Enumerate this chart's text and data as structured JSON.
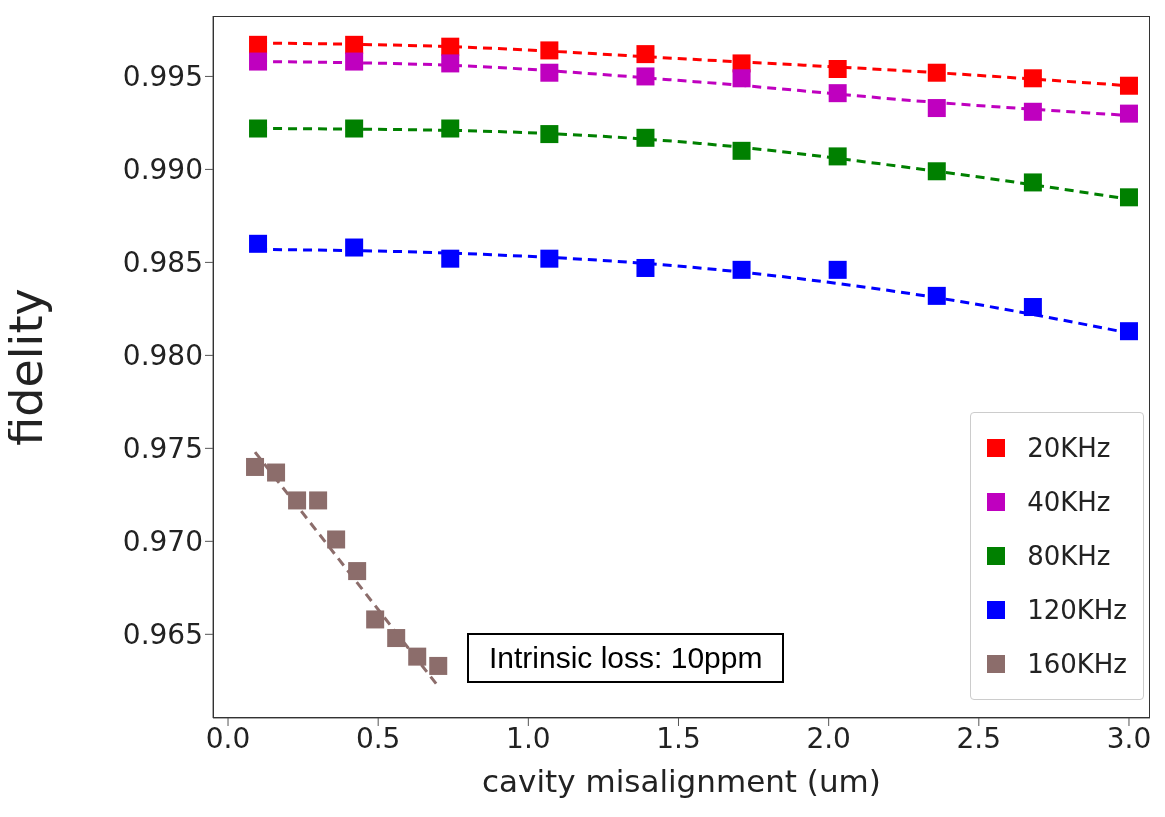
{
  "chart_data": {
    "type": "scatter",
    "xlabel": "cavity misalignment (um)",
    "ylabel": "fidelity",
    "xlim": [
      -0.05,
      3.07
    ],
    "ylim": [
      0.9605,
      0.99825
    ],
    "xticks": [
      {
        "value": 0,
        "label": "0.0"
      },
      {
        "value": 0.5,
        "label": "0.5"
      },
      {
        "value": 1,
        "label": "1.0"
      },
      {
        "value": 1.5,
        "label": "1.5"
      },
      {
        "value": 2,
        "label": "2.0"
      },
      {
        "value": 2.5,
        "label": "2.5"
      },
      {
        "value": 3,
        "label": "3.0"
      }
    ],
    "yticks": [
      {
        "value": 0.965,
        "label": "0.965"
      },
      {
        "value": 0.97,
        "label": "0.970"
      },
      {
        "value": 0.975,
        "label": "0.975"
      },
      {
        "value": 0.98,
        "label": "0.980"
      },
      {
        "value": 0.985,
        "label": "0.985"
      },
      {
        "value": 0.99,
        "label": "0.990"
      },
      {
        "value": 0.995,
        "label": "0.995"
      }
    ],
    "grid": false,
    "legend": "bottom right",
    "marker": "square",
    "annotations": [
      "Intrinsic loss: 10ppm"
    ],
    "series": [
      {
        "name": "20KHz",
        "color": "#ff0000",
        "x": [
          0.1,
          0.42,
          0.74,
          1.07,
          1.39,
          1.71,
          2.03,
          2.36,
          2.68,
          3.0
        ],
        "values": [
          0.9967,
          0.9967,
          0.9966,
          0.9964,
          0.9962,
          0.9957,
          0.9954,
          0.9952,
          0.9949,
          0.9945
        ]
      },
      {
        "name": "40KHz",
        "color": "#bf00bf",
        "x": [
          0.1,
          0.42,
          0.74,
          1.07,
          1.39,
          1.71,
          2.03,
          2.36,
          2.68,
          3.0
        ],
        "values": [
          0.9958,
          0.9958,
          0.9957,
          0.9952,
          0.995,
          0.9949,
          0.9941,
          0.9933,
          0.9931,
          0.993
        ]
      },
      {
        "name": "80KHz",
        "color": "#008000",
        "x": [
          0.1,
          0.42,
          0.74,
          1.07,
          1.39,
          1.71,
          2.03,
          2.36,
          2.68,
          3.0
        ],
        "values": [
          0.9922,
          0.9922,
          0.9922,
          0.9919,
          0.9917,
          0.991,
          0.9907,
          0.9899,
          0.9893,
          0.9885
        ]
      },
      {
        "name": "120KHz",
        "color": "#0000ff",
        "x": [
          0.1,
          0.42,
          0.74,
          1.07,
          1.39,
          1.71,
          2.03,
          2.36,
          2.68,
          3.0
        ],
        "values": [
          0.986,
          0.9858,
          0.9852,
          0.9852,
          0.9847,
          0.9846,
          0.9846,
          0.9832,
          0.9826,
          0.9813
        ]
      },
      {
        "name": "160KHz",
        "color": "#8c6d6b",
        "x": [
          0.09,
          0.16,
          0.23,
          0.3,
          0.36,
          0.43,
          0.49,
          0.56,
          0.63,
          0.7
        ],
        "values": [
          0.974,
          0.9737,
          0.9722,
          0.9722,
          0.9701,
          0.9684,
          0.9658,
          0.9648,
          0.9638,
          0.9633
        ]
      },
      {
        "type": "line",
        "line_style": "dashed",
        "marker": "none",
        "color": "#ff0000",
        "x": [
          0.1,
          0.74,
          1.57,
          2.36,
          3.0
        ],
        "values": [
          0.9968,
          0.9966,
          0.9959,
          0.9952,
          0.9945
        ]
      },
      {
        "type": "line",
        "line_style": "dashed",
        "marker": "none",
        "color": "#bf00bf",
        "x": [
          0.1,
          0.74,
          1.57,
          2.36,
          3.0
        ],
        "values": [
          0.9958,
          0.9956,
          0.9947,
          0.9936,
          0.9929
        ]
      },
      {
        "type": "line",
        "line_style": "dashed",
        "marker": "none",
        "color": "#008000",
        "x": [
          0.1,
          0.74,
          1.57,
          2.36,
          3.0
        ],
        "values": [
          0.9922,
          0.9921,
          0.9914,
          0.9899,
          0.9884
        ]
      },
      {
        "type": "line",
        "line_style": "dashed",
        "marker": "none",
        "color": "#0000ff",
        "x": [
          0.1,
          0.74,
          1.57,
          2.36,
          3.0
        ],
        "values": [
          0.9857,
          0.9855,
          0.9847,
          0.9831,
          0.9812
        ]
      },
      {
        "type": "line",
        "line_style": "dashed",
        "marker": "none",
        "color": "#8c6d6b",
        "x": [
          0.09,
          0.7
        ],
        "values": [
          0.9748,
          0.9622
        ]
      }
    ]
  }
}
